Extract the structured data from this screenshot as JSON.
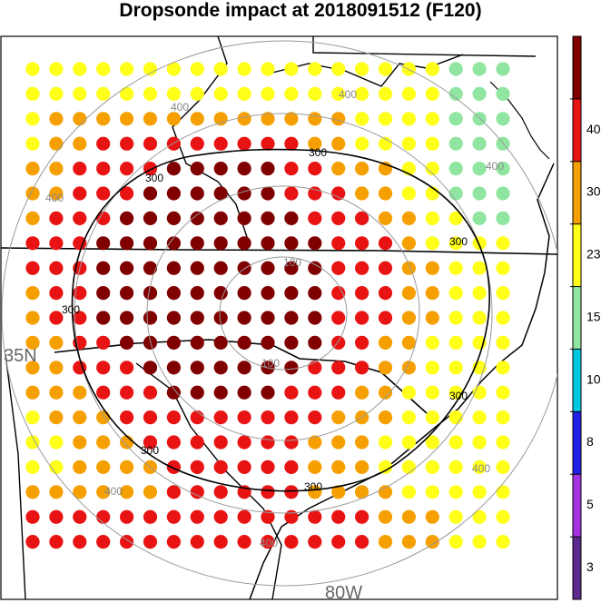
{
  "chart_data": {
    "type": "scatter",
    "title": "Dropsonde impact at 2018091512 (F120)",
    "xlabel": "",
    "ylabel": "",
    "lat_label": "35N",
    "lon_label": "80W",
    "colorbar": {
      "ticks": [
        "3",
        "5",
        "8",
        "10",
        "15",
        "23",
        "30",
        "40"
      ],
      "colors": [
        "#5c2a8c",
        "#a433e0",
        "#1f1fe8",
        "#00c8e0",
        "#90e6a0",
        "#ffff1a",
        "#f5a000",
        "#e81414",
        "#800000"
      ]
    },
    "contours": {
      "black_labels": [
        "300",
        "300",
        "300",
        "300",
        "300",
        "300",
        "300"
      ],
      "gray_labels": [
        "100",
        "100",
        "400",
        "400",
        "400",
        "400",
        "400",
        "400",
        "400"
      ]
    },
    "grid": {
      "rows": 20,
      "cols": 21,
      "values": [
        [
          20,
          20,
          20,
          20,
          20,
          20,
          20,
          20,
          20,
          20,
          20,
          20,
          20,
          20,
          20,
          20,
          20,
          20,
          12,
          12,
          12
        ],
        [
          20,
          20,
          20,
          20,
          20,
          20,
          20,
          20,
          20,
          20,
          20,
          20,
          20,
          20,
          20,
          20,
          20,
          20,
          12,
          12,
          12
        ],
        [
          20,
          25,
          25,
          25,
          25,
          25,
          25,
          25,
          25,
          25,
          25,
          25,
          25,
          25,
          20,
          20,
          20,
          20,
          12,
          12,
          12
        ],
        [
          20,
          25,
          25,
          35,
          35,
          35,
          35,
          35,
          35,
          35,
          35,
          35,
          25,
          25,
          20,
          20,
          20,
          20,
          12,
          12,
          12
        ],
        [
          25,
          25,
          35,
          35,
          35,
          35,
          45,
          45,
          45,
          45,
          45,
          35,
          35,
          25,
          25,
          25,
          20,
          20,
          12,
          12,
          12
        ],
        [
          25,
          25,
          35,
          35,
          35,
          45,
          45,
          45,
          45,
          45,
          45,
          35,
          35,
          35,
          25,
          25,
          20,
          20,
          12,
          12,
          12
        ],
        [
          25,
          35,
          35,
          35,
          45,
          45,
          45,
          45,
          45,
          45,
          45,
          45,
          35,
          35,
          35,
          25,
          25,
          20,
          20,
          12,
          12
        ],
        [
          35,
          35,
          35,
          45,
          45,
          45,
          45,
          45,
          45,
          45,
          45,
          45,
          45,
          35,
          35,
          35,
          25,
          20,
          20,
          20,
          20
        ],
        [
          35,
          35,
          35,
          45,
          45,
          45,
          45,
          45,
          45,
          45,
          45,
          45,
          45,
          35,
          35,
          35,
          25,
          25,
          20,
          20,
          20
        ],
        [
          25,
          35,
          35,
          45,
          45,
          45,
          45,
          45,
          45,
          45,
          45,
          45,
          45,
          35,
          35,
          35,
          25,
          25,
          20,
          20,
          20
        ],
        [
          25,
          35,
          35,
          45,
          45,
          45,
          45,
          45,
          45,
          45,
          45,
          45,
          45,
          35,
          35,
          35,
          25,
          25,
          20,
          20,
          20
        ],
        [
          25,
          25,
          35,
          35,
          45,
          45,
          45,
          45,
          45,
          45,
          45,
          45,
          45,
          35,
          35,
          25,
          25,
          20,
          20,
          20,
          20
        ],
        [
          25,
          25,
          35,
          35,
          35,
          45,
          45,
          45,
          45,
          45,
          45,
          45,
          35,
          35,
          35,
          25,
          25,
          20,
          20,
          20,
          20
        ],
        [
          25,
          25,
          25,
          35,
          35,
          35,
          45,
          45,
          45,
          45,
          45,
          35,
          35,
          35,
          25,
          25,
          20,
          20,
          20,
          20,
          20
        ],
        [
          20,
          25,
          25,
          25,
          35,
          35,
          35,
          35,
          35,
          35,
          35,
          35,
          35,
          25,
          25,
          25,
          20,
          20,
          20,
          20,
          20
        ],
        [
          20,
          20,
          25,
          25,
          25,
          35,
          35,
          35,
          35,
          35,
          35,
          35,
          25,
          25,
          25,
          20,
          20,
          20,
          20,
          20,
          20
        ],
        [
          20,
          20,
          25,
          25,
          25,
          25,
          35,
          35,
          35,
          35,
          35,
          35,
          25,
          25,
          25,
          20,
          20,
          20,
          20,
          20,
          20
        ],
        [
          25,
          25,
          25,
          25,
          25,
          25,
          35,
          35,
          35,
          35,
          35,
          35,
          25,
          25,
          25,
          25,
          20,
          20,
          20,
          20,
          20
        ],
        [
          35,
          35,
          35,
          35,
          35,
          35,
          35,
          35,
          35,
          35,
          35,
          35,
          35,
          35,
          35,
          25,
          25,
          25,
          20,
          20,
          20
        ],
        [
          35,
          35,
          35,
          35,
          35,
          35,
          35,
          35,
          35,
          35,
          35,
          35,
          35,
          35,
          35,
          25,
          25,
          25,
          20,
          20,
          20
        ]
      ]
    }
  }
}
